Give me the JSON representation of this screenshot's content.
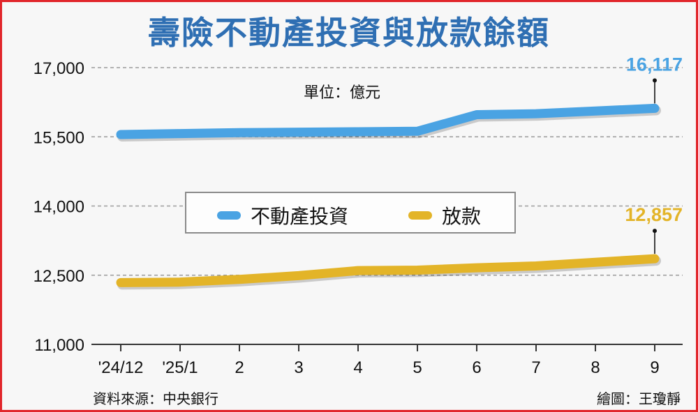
{
  "title": "壽險不動產投資與放款餘額",
  "unit_label": "單位：億元",
  "source": "資料來源：中央銀行",
  "credit": "繪圖：王瓊靜",
  "colors": {
    "real_estate": "#4aa3e3",
    "loans": "#e3b428",
    "title": "#2f6fb3"
  },
  "chart_data": {
    "type": "line",
    "title": "壽險不動產投資與放款餘額",
    "ylabel": "單位：億元",
    "x": [
      "'24/12",
      "'25/1",
      "2",
      "3",
      "4",
      "5",
      "6",
      "7",
      "8",
      "9"
    ],
    "ylim": [
      11000,
      17000
    ],
    "yticks": [
      11000,
      12500,
      14000,
      15500,
      17000
    ],
    "ytick_labels": [
      "11,000",
      "12,500",
      "14,000",
      "15,500",
      "17,000"
    ],
    "grid": "horizontal dashed",
    "legend_position": "center",
    "series": [
      {
        "name": "不動產投資",
        "color": "#4aa3e3",
        "values": [
          15550,
          15570,
          15590,
          15600,
          15610,
          15620,
          15980,
          16000,
          16060,
          16117
        ]
      },
      {
        "name": "放款",
        "color": "#e3b428",
        "values": [
          12340,
          12350,
          12410,
          12490,
          12600,
          12610,
          12660,
          12700,
          12780,
          12857
        ]
      }
    ],
    "annotations": [
      {
        "series": "不動產投資",
        "x": "9",
        "text": "16,117"
      },
      {
        "series": "放款",
        "x": "9",
        "text": "12,857"
      }
    ]
  }
}
